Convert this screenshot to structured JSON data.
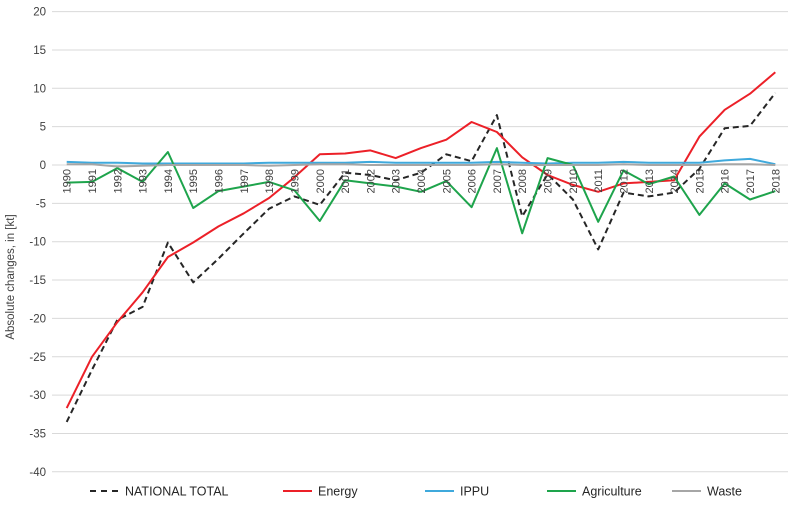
{
  "chart": {
    "y_axis_title": "Absolute changes, in [kt]",
    "background": "#ffffff",
    "grid_color": "#d9d9d9",
    "tick_text_color": "#404040",
    "legend_text_color": "#262626"
  },
  "chart_data": {
    "type": "line",
    "title": "",
    "xlabel": "",
    "ylabel": "Absolute changes, in [kt]",
    "ylim": [
      -40,
      20
    ],
    "ytick_step": 5,
    "grid": true,
    "legend_position": "bottom",
    "x": [
      1990,
      1991,
      1992,
      1993,
      1994,
      1995,
      1996,
      1997,
      1998,
      1999,
      2000,
      2001,
      2002,
      2003,
      2004,
      2005,
      2006,
      2007,
      2008,
      2009,
      2010,
      2011,
      2012,
      2013,
      2014,
      2015,
      2016,
      2017,
      2018
    ],
    "series": [
      {
        "name": "NATIONAL TOTAL",
        "color": "#262626",
        "line_style": "dashed",
        "values": [
          -33.5,
          -26.7,
          -20.2,
          -18.5,
          -10.1,
          -15.3,
          -12.2,
          -8.9,
          -5.7,
          -4.1,
          -5.2,
          -1.0,
          -1.3,
          -2.0,
          -1.0,
          1.4,
          0.5,
          6.5,
          -6.7,
          -1.2,
          -4.5,
          -11.0,
          -3.6,
          -4.1,
          -3.6,
          -0.5,
          4.8,
          5.1,
          9.4
        ]
      },
      {
        "name": "Energy",
        "color": "#ec2028",
        "line_style": "solid",
        "values": [
          -31.7,
          -25.0,
          -20.5,
          -16.6,
          -12.0,
          -10.1,
          -8.0,
          -6.3,
          -4.3,
          -1.6,
          1.4,
          1.5,
          1.9,
          0.9,
          2.2,
          3.3,
          5.6,
          4.3,
          1.0,
          -1.3,
          -2.6,
          -3.5,
          -2.4,
          -2.2,
          -2.0,
          3.7,
          7.2,
          9.3,
          12.1
        ]
      },
      {
        "name": "IPPU",
        "color": "#3fa9dc",
        "line_style": "solid",
        "values": [
          0.4,
          0.3,
          0.3,
          0.2,
          0.2,
          0.2,
          0.2,
          0.2,
          0.3,
          0.3,
          0.3,
          0.3,
          0.4,
          0.3,
          0.3,
          0.3,
          0.3,
          0.4,
          0.3,
          0.2,
          0.3,
          0.3,
          0.4,
          0.3,
          0.3,
          0.3,
          0.6,
          0.8,
          0.1
        ]
      },
      {
        "name": "Agriculture",
        "color": "#1ea44c",
        "line_style": "solid",
        "values": [
          -2.3,
          -2.2,
          -0.4,
          -2.2,
          1.7,
          -5.6,
          -3.4,
          -2.8,
          -2.2,
          -3.3,
          -7.3,
          -2.0,
          -2.4,
          -2.8,
          -3.5,
          -2.1,
          -5.5,
          2.2,
          -8.9,
          0.9,
          0.0,
          -7.4,
          -0.7,
          -2.5,
          -1.5,
          -6.5,
          -2.4,
          -4.5,
          -3.4
        ]
      },
      {
        "name": "Waste",
        "color": "#a6a6a6",
        "line_style": "solid",
        "values": [
          0.1,
          0.1,
          -0.2,
          -0.1,
          0.0,
          0.0,
          0.0,
          0.0,
          -0.1,
          0.0,
          0.1,
          0.1,
          0.0,
          0.0,
          0.0,
          0.0,
          0.0,
          0.1,
          0.0,
          0.0,
          0.0,
          0.0,
          0.1,
          0.0,
          0.0,
          0.0,
          0.1,
          0.1,
          0.0
        ]
      }
    ],
    "y_ticks": [
      20,
      15,
      10,
      5,
      0,
      -5,
      -10,
      -15,
      -20,
      -25,
      -30,
      -35,
      -40
    ]
  }
}
